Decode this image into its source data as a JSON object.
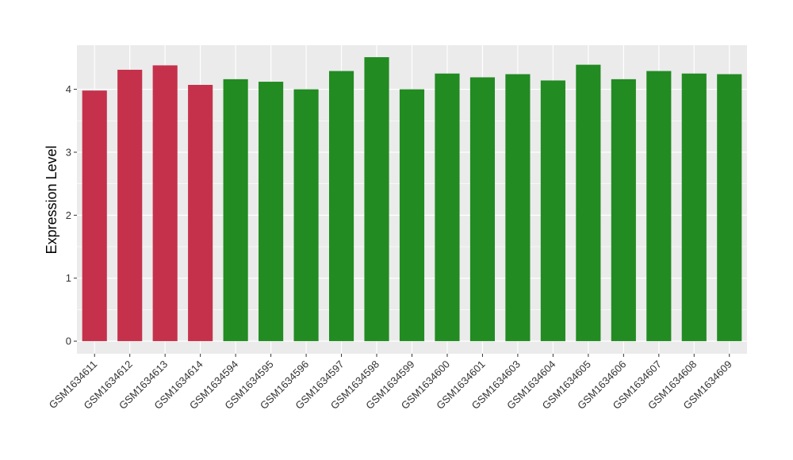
{
  "chart_data": {
    "type": "bar",
    "title": "",
    "xlabel": "",
    "ylabel": "Expression Level",
    "ylim": [
      -0.2,
      4.7
    ],
    "yticks": [
      0,
      1,
      2,
      3,
      4
    ],
    "grid": true,
    "legend": "none",
    "categories": [
      "GSM1634611",
      "GSM1634612",
      "GSM1634613",
      "GSM1634614",
      "GSM1634594",
      "GSM1634595",
      "GSM1634596",
      "GSM1634597",
      "GSM1634598",
      "GSM1634599",
      "GSM1634600",
      "GSM1634601",
      "GSM1634603",
      "GSM1634604",
      "GSM1634605",
      "GSM1634606",
      "GSM1634607",
      "GSM1634608",
      "GSM1634609"
    ],
    "values": [
      3.98,
      4.31,
      4.38,
      4.07,
      4.16,
      4.12,
      4.0,
      4.29,
      4.51,
      4.0,
      4.25,
      4.19,
      4.24,
      4.14,
      4.39,
      4.16,
      4.29,
      4.25,
      4.24
    ],
    "groups": [
      "a",
      "a",
      "a",
      "a",
      "b",
      "b",
      "b",
      "b",
      "b",
      "b",
      "b",
      "b",
      "b",
      "b",
      "b",
      "b",
      "b",
      "b",
      "b"
    ],
    "colors": {
      "a": "#C5314B",
      "b": "#228B22",
      "panel": "#EBEBEB",
      "grid": "#FFFFFF"
    }
  }
}
